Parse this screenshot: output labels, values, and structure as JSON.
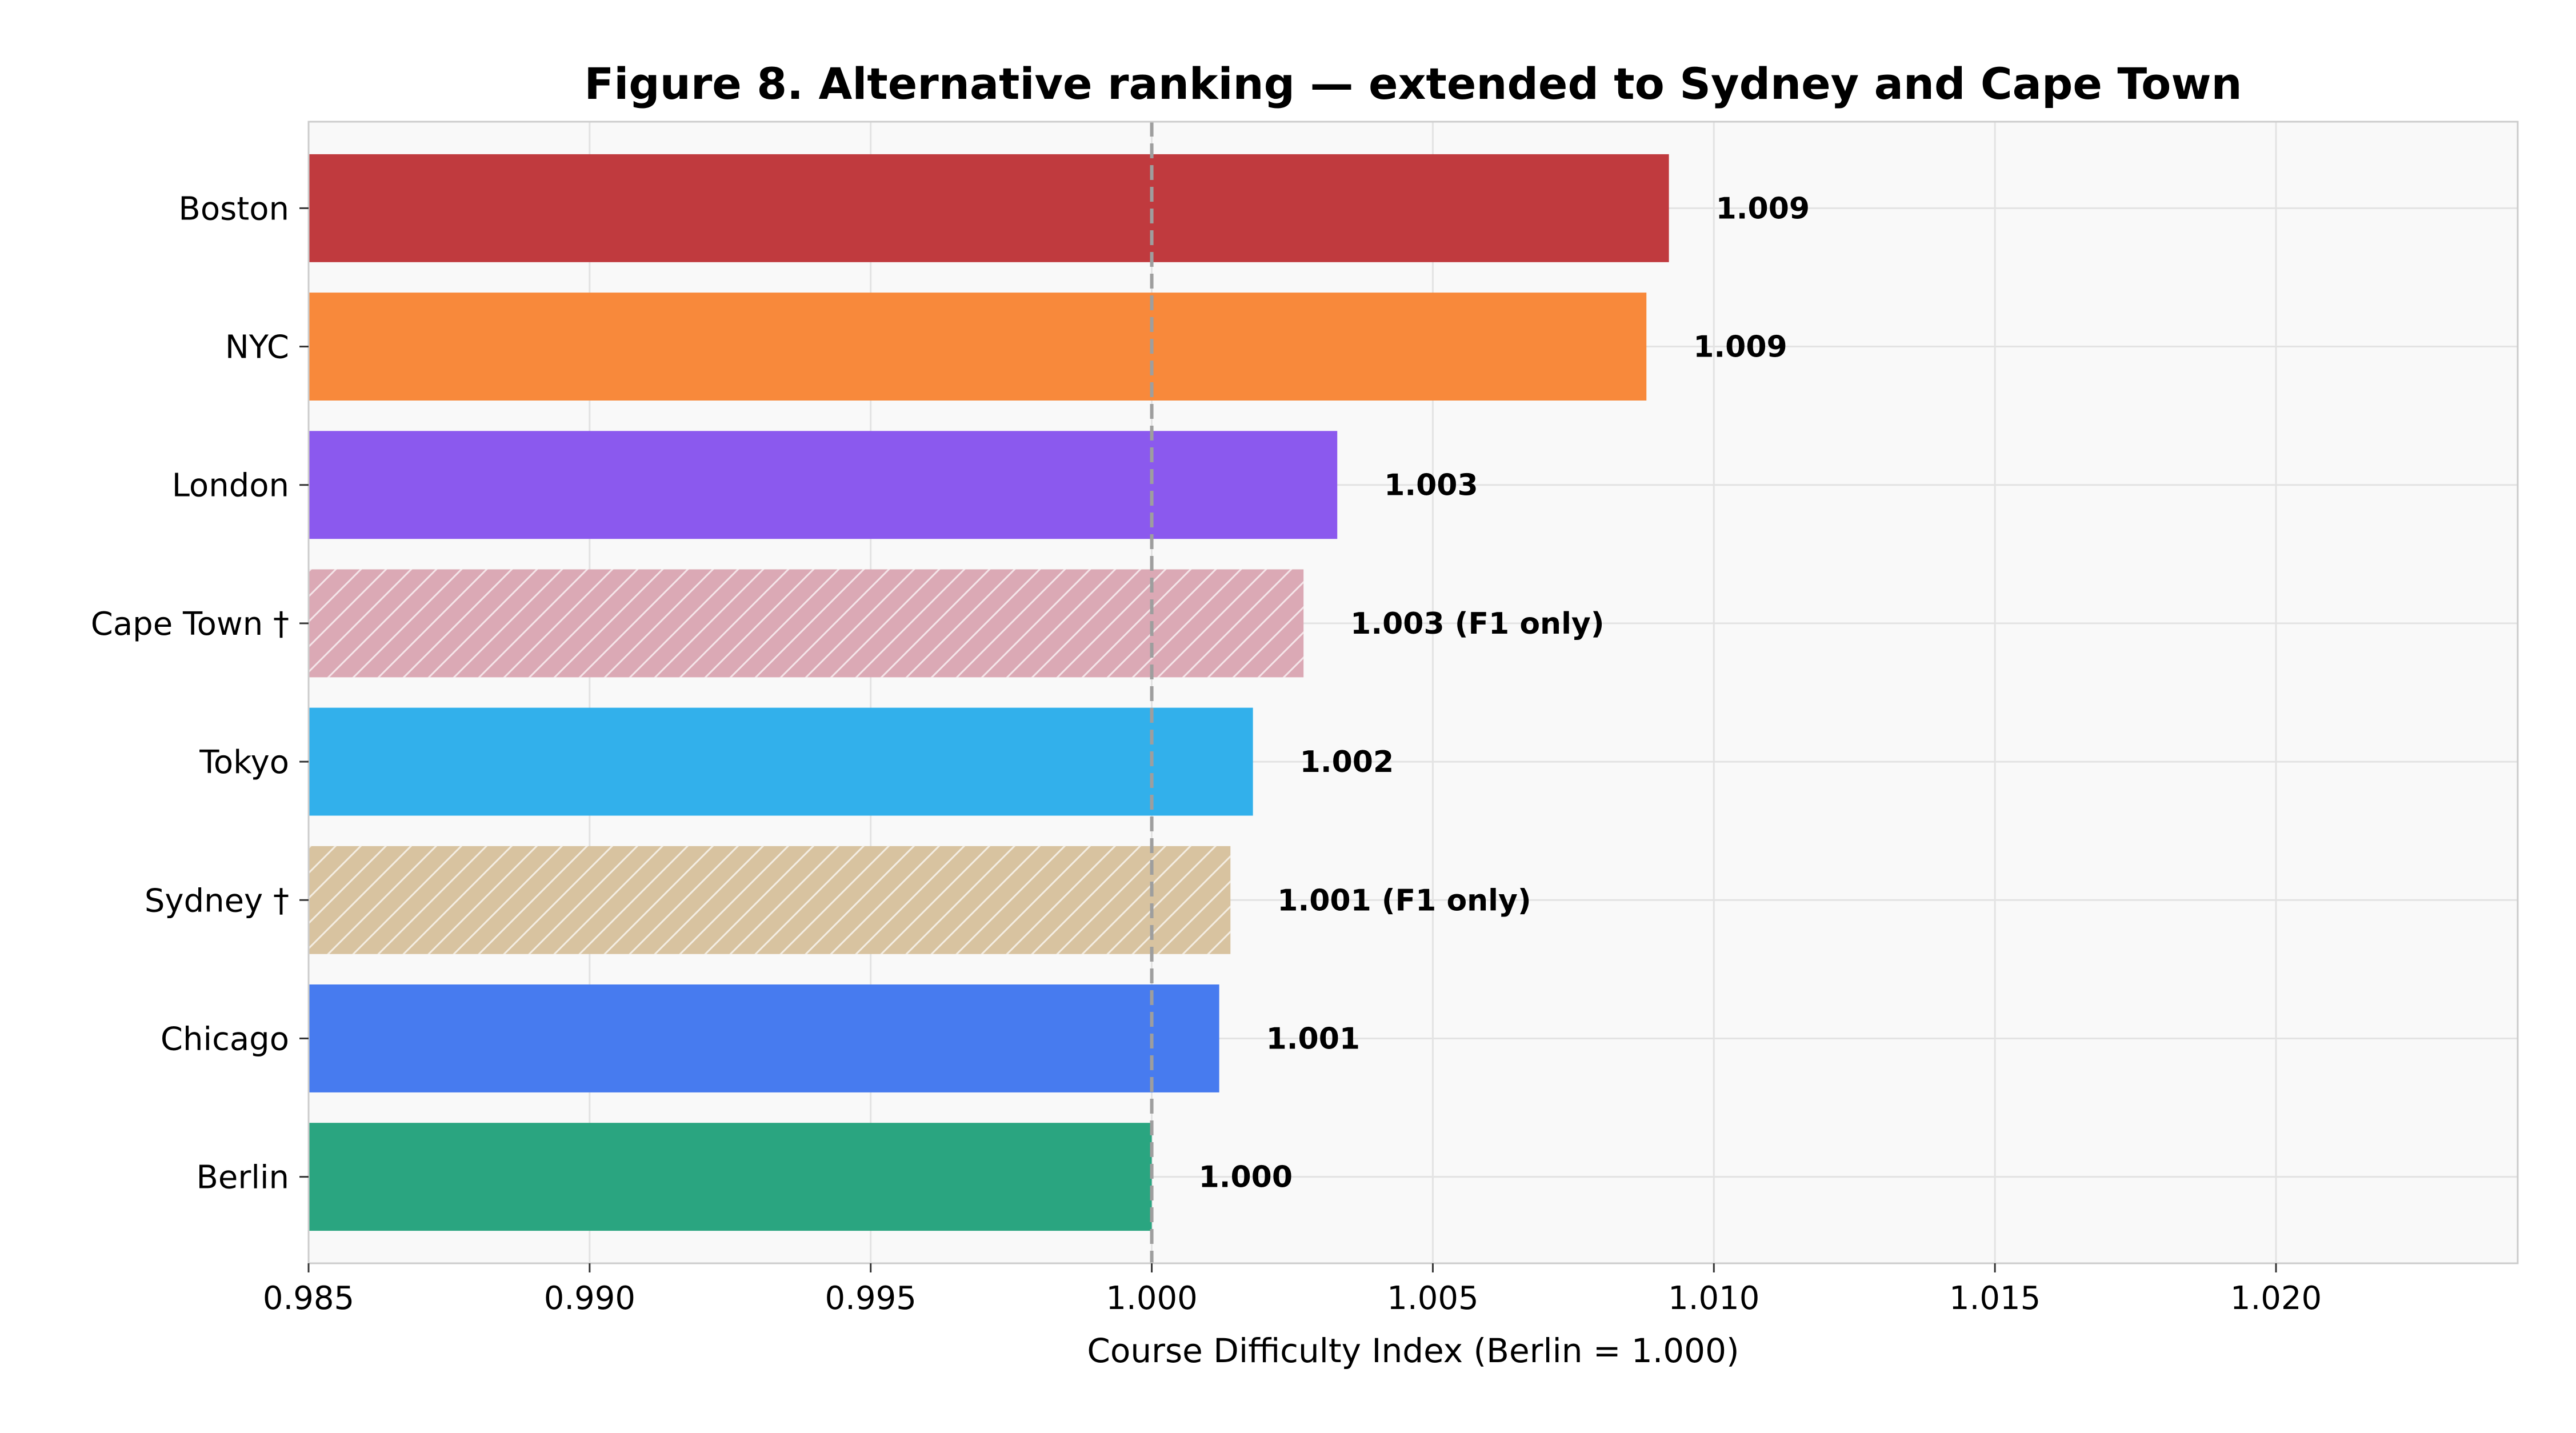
{
  "chart_data": {
    "type": "bar",
    "orientation": "horizontal",
    "title": "Figure 8. Alternative ranking — extended to Sydney and Cape Town",
    "xlabel": "Course Difficulty Index (Berlin = 1.000)",
    "ylabel": "",
    "xlim": [
      0.985,
      1.0243
    ],
    "xticks": [
      0.985,
      0.99,
      0.995,
      1.0,
      1.005,
      1.01,
      1.015,
      1.02
    ],
    "xtick_labels": [
      "0.985",
      "0.990",
      "0.995",
      "1.000",
      "1.005",
      "1.010",
      "1.015",
      "1.020"
    ],
    "grid": true,
    "reference_line": 1.0,
    "categories": [
      "Boston",
      "NYC",
      "London",
      "Cape Town †",
      "Tokyo",
      "Sydney †",
      "Chicago",
      "Berlin"
    ],
    "values": [
      1.0092,
      1.0088,
      1.0033,
      1.0027,
      1.0018,
      1.0014,
      1.0012,
      1.0
    ],
    "data_labels": [
      "1.009",
      "1.009",
      "1.003",
      "1.003 (F1 only)",
      "1.002",
      "1.001 (F1 only)",
      "1.001",
      "1.000"
    ],
    "colors": [
      "#c03a3e",
      "#f8893b",
      "#8b59ee",
      "#dba9b5",
      "#32b0eb",
      "#d8c3a0",
      "#477bef",
      "#2aa580"
    ],
    "hatched": [
      false,
      false,
      false,
      true,
      false,
      true,
      false,
      false
    ]
  }
}
